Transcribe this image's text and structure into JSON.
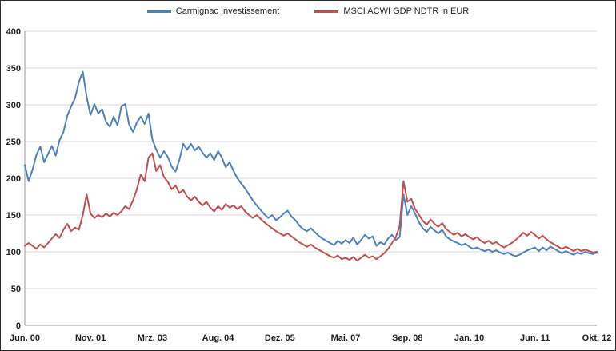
{
  "chart_data": {
    "type": "line",
    "title": "",
    "grid": true,
    "legend_position": "top",
    "x_axis": {
      "unit": "months since Jun 2000",
      "range": [
        0,
        148
      ],
      "tick_labels": [
        "Jun. 00",
        "Nov. 01",
        "Mrz. 03",
        "Aug. 04",
        "Dez. 05",
        "Mai. 07",
        "Sep. 08",
        "Jan. 10",
        "Jun. 11",
        "Okt. 12"
      ],
      "tick_positions": [
        0,
        17,
        33,
        50,
        66,
        83,
        99,
        115,
        132,
        148
      ]
    },
    "y_axis": {
      "range": [
        0,
        400
      ],
      "ticks": [
        0,
        50,
        100,
        150,
        200,
        250,
        300,
        350,
        400
      ]
    },
    "series": [
      {
        "name": "Carmignac Investissement",
        "id": "carmignac-investissement",
        "color": "#4f81bd",
        "values": [
          218,
          196,
          212,
          232,
          243,
          222,
          233,
          244,
          231,
          252,
          263,
          285,
          298,
          309,
          331,
          345,
          311,
          286,
          301,
          288,
          294,
          277,
          270,
          284,
          272,
          298,
          301,
          273,
          263,
          276,
          284,
          274,
          288,
          253,
          239,
          228,
          237,
          229,
          216,
          209,
          225,
          247,
          239,
          247,
          238,
          243,
          235,
          228,
          234,
          225,
          237,
          228,
          215,
          222,
          210,
          200,
          193,
          186,
          178,
          170,
          163,
          157,
          151,
          146,
          150,
          143,
          147,
          152,
          156,
          148,
          143,
          136,
          131,
          128,
          132,
          127,
          122,
          118,
          115,
          112,
          109,
          115,
          111,
          116,
          112,
          119,
          110,
          116,
          123,
          118,
          121,
          108,
          113,
          110,
          118,
          123,
          116,
          120,
          178,
          150,
          162,
          152,
          140,
          132,
          127,
          134,
          129,
          125,
          130,
          121,
          117,
          114,
          112,
          109,
          111,
          107,
          104,
          106,
          103,
          101,
          103,
          100,
          102,
          99,
          97,
          99,
          96,
          94,
          96,
          99,
          102,
          104,
          106,
          101,
          106,
          102,
          107,
          104,
          101,
          98,
          101,
          98,
          96,
          99,
          97,
          100,
          98,
          97,
          99
        ]
      },
      {
        "name": "MSCI ACWI GDP NDTR in EUR",
        "id": "msci-acwi-gdp-ndtr-eur",
        "color": "#c0504d",
        "values": [
          108,
          112,
          108,
          104,
          110,
          106,
          112,
          118,
          124,
          119,
          130,
          138,
          128,
          133,
          130,
          150,
          178,
          152,
          146,
          150,
          147,
          152,
          148,
          153,
          150,
          155,
          162,
          158,
          170,
          185,
          205,
          196,
          228,
          234,
          210,
          218,
          202,
          195,
          185,
          190,
          180,
          184,
          175,
          170,
          175,
          168,
          163,
          168,
          160,
          155,
          162,
          157,
          165,
          160,
          163,
          158,
          162,
          155,
          150,
          146,
          150,
          145,
          140,
          136,
          132,
          128,
          125,
          122,
          125,
          121,
          117,
          113,
          110,
          107,
          110,
          106,
          103,
          100,
          97,
          94,
          92,
          95,
          90,
          92,
          89,
          93,
          88,
          92,
          96,
          92,
          94,
          90,
          94,
          98,
          104,
          112,
          120,
          135,
          196,
          168,
          172,
          158,
          150,
          142,
          137,
          144,
          138,
          134,
          139,
          131,
          127,
          123,
          126,
          121,
          124,
          120,
          117,
          120,
          115,
          112,
          115,
          111,
          113,
          109,
          106,
          109,
          112,
          116,
          121,
          126,
          122,
          127,
          123,
          118,
          122,
          117,
          113,
          110,
          107,
          104,
          107,
          104,
          101,
          104,
          101,
          103,
          101,
          99,
          100
        ]
      }
    ],
    "colors": {
      "gridline": "#d9d9d9",
      "axis": "#9b9b9b",
      "tick_label": "#1f1f1f",
      "background": "#ffffff"
    }
  }
}
